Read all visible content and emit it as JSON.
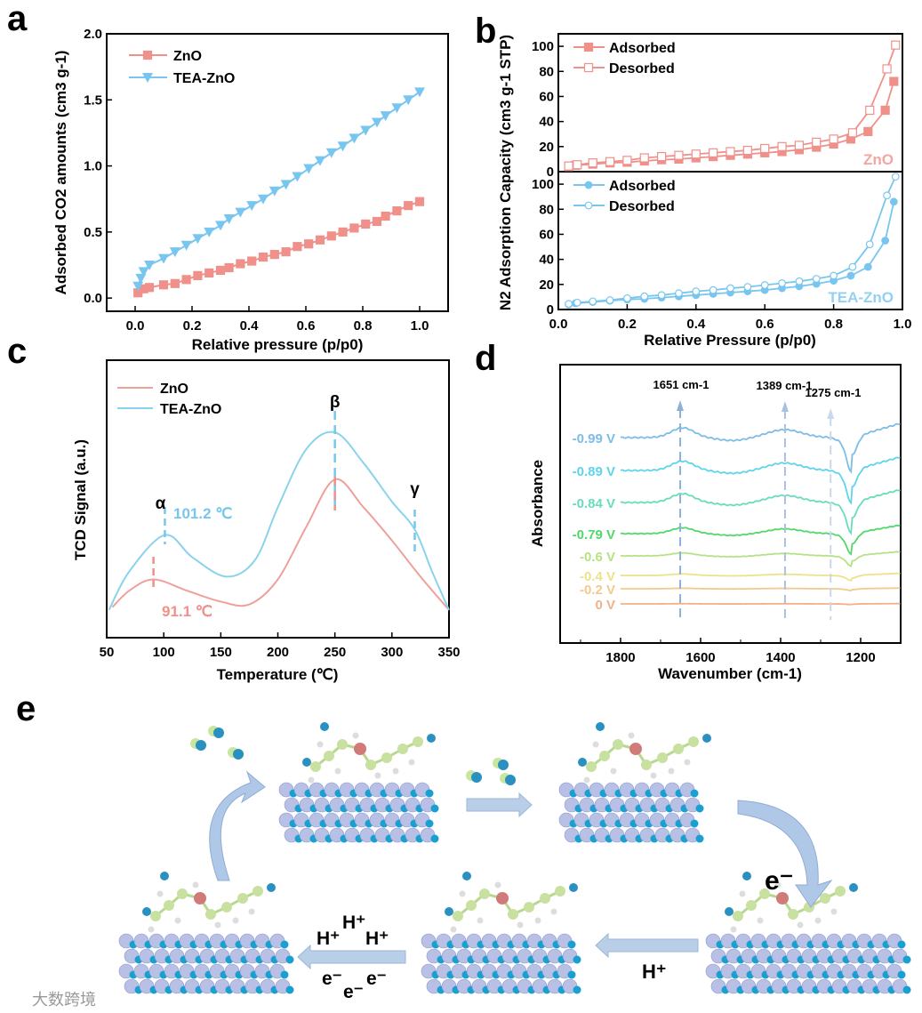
{
  "chart_data": [
    {
      "panel": "a",
      "type": "line",
      "xlabel": "Relative pressure (p/p0)",
      "ylabel": "Adsorbed CO2 amounts (cm3 g-1)",
      "xlim": [
        -0.1,
        1.1
      ],
      "ylim": [
        -0.1,
        2.0
      ],
      "xticks": [
        "0.0",
        "0.2",
        "0.4",
        "0.6",
        "0.8",
        "1.0"
      ],
      "yticks": [
        "0.0",
        "0.5",
        "1.0",
        "1.5",
        "2.0"
      ],
      "legend": "top-left",
      "series": [
        {
          "name": "ZnO",
          "color": "#f0908a",
          "marker": "square",
          "x": [
            0.01,
            0.03,
            0.05,
            0.1,
            0.14,
            0.18,
            0.22,
            0.26,
            0.3,
            0.33,
            0.37,
            0.41,
            0.45,
            0.49,
            0.53,
            0.57,
            0.61,
            0.65,
            0.69,
            0.73,
            0.77,
            0.81,
            0.85,
            0.88,
            0.92,
            0.96,
            1.0
          ],
          "y": [
            0.04,
            0.07,
            0.08,
            0.1,
            0.11,
            0.14,
            0.17,
            0.19,
            0.21,
            0.23,
            0.26,
            0.28,
            0.31,
            0.33,
            0.35,
            0.39,
            0.41,
            0.44,
            0.47,
            0.5,
            0.53,
            0.56,
            0.58,
            0.62,
            0.66,
            0.7,
            0.73
          ]
        },
        {
          "name": "TEA-ZnO",
          "color": "#78c6ef",
          "marker": "triangle-down",
          "x": [
            0.01,
            0.02,
            0.03,
            0.05,
            0.1,
            0.14,
            0.18,
            0.22,
            0.26,
            0.3,
            0.33,
            0.37,
            0.41,
            0.45,
            0.49,
            0.53,
            0.57,
            0.61,
            0.65,
            0.69,
            0.73,
            0.77,
            0.81,
            0.85,
            0.88,
            0.92,
            0.96,
            1.0
          ],
          "y": [
            0.09,
            0.15,
            0.2,
            0.25,
            0.3,
            0.35,
            0.4,
            0.45,
            0.5,
            0.55,
            0.6,
            0.65,
            0.7,
            0.75,
            0.81,
            0.86,
            0.92,
            0.98,
            1.04,
            1.1,
            1.15,
            1.21,
            1.27,
            1.33,
            1.38,
            1.44,
            1.5,
            1.56
          ]
        }
      ]
    },
    {
      "panel": "b",
      "type": "line",
      "xlabel": "Relative Pressure (p/p0)",
      "ylabel": "N2 Adsorption Capacity (cm3 g-1 STP)",
      "xlim": [
        0,
        1.0
      ],
      "ylim": [
        0,
        110
      ],
      "xticks": [
        "0.0",
        "0.2",
        "0.4",
        "0.6",
        "0.8",
        "1.0"
      ],
      "yticks": [
        "0",
        "20",
        "40",
        "60",
        "80",
        "100"
      ],
      "subplots": [
        {
          "label": "ZnO",
          "color": "#f0908a",
          "series": [
            {
              "name": "Adsorbed",
              "filled": true,
              "x": [
                0.03,
                0.05,
                0.1,
                0.15,
                0.2,
                0.25,
                0.3,
                0.35,
                0.4,
                0.45,
                0.5,
                0.55,
                0.6,
                0.65,
                0.7,
                0.75,
                0.8,
                0.85,
                0.9,
                0.95,
                0.975
              ],
              "y": [
                4,
                5,
                6,
                7,
                7.5,
                8.5,
                9.5,
                10,
                11,
                12,
                13,
                14,
                15,
                16,
                17.5,
                19.5,
                22,
                26,
                32,
                49,
                72
              ]
            },
            {
              "name": "Desorbed",
              "filled": false,
              "x": [
                0.98,
                0.955,
                0.905,
                0.855,
                0.8,
                0.75,
                0.7,
                0.65,
                0.6,
                0.55,
                0.5,
                0.45,
                0.4,
                0.35,
                0.3,
                0.25,
                0.2,
                0.15,
                0.1,
                0.055,
                0.03
              ],
              "y": [
                101,
                82,
                49,
                31,
                26,
                23.5,
                21,
                20,
                18.5,
                17,
                16,
                15,
                14,
                13,
                12,
                11,
                9,
                8,
                7,
                5.5,
                4.5
              ]
            }
          ]
        },
        {
          "label": "TEA-ZnO",
          "color": "#78c6ef",
          "series": [
            {
              "name": "Adsorbed",
              "filled": true,
              "x": [
                0.03,
                0.05,
                0.1,
                0.15,
                0.2,
                0.25,
                0.3,
                0.35,
                0.4,
                0.45,
                0.5,
                0.55,
                0.6,
                0.65,
                0.7,
                0.75,
                0.8,
                0.85,
                0.9,
                0.95,
                0.975
              ],
              "y": [
                4,
                5,
                6,
                7,
                8,
                8.5,
                9.5,
                10.5,
                11.5,
                12.5,
                13.5,
                14.5,
                15.5,
                17,
                18.5,
                20.5,
                23,
                27,
                34,
                55,
                86
              ]
            },
            {
              "name": "Desorbed",
              "filled": false,
              "x": [
                0.98,
                0.955,
                0.905,
                0.855,
                0.8,
                0.75,
                0.7,
                0.65,
                0.6,
                0.55,
                0.5,
                0.45,
                0.4,
                0.35,
                0.3,
                0.25,
                0.2,
                0.15,
                0.1,
                0.055,
                0.03
              ],
              "y": [
                106,
                91,
                52,
                34,
                27,
                24.5,
                22.5,
                21,
                19.5,
                18,
                17,
                15.5,
                14.5,
                13,
                11.5,
                10.5,
                9,
                7.5,
                6.5,
                5.5,
                4.5
              ]
            }
          ]
        }
      ]
    },
    {
      "panel": "c",
      "type": "line",
      "xlabel": "Temperature (℃)",
      "ylabel": "TCD Signal (a.u.)",
      "xlim": [
        50,
        350
      ],
      "ylim": [
        0,
        100
      ],
      "xticks": [
        "50",
        "100",
        "150",
        "200",
        "250",
        "300",
        "350"
      ],
      "legend": "top-left",
      "series": [
        {
          "name": "ZnO",
          "color": "#f0a09a",
          "x": [
            55,
            70,
            91,
            120,
            150,
            175,
            200,
            225,
            250,
            275,
            300,
            325,
            350
          ],
          "y": [
            11,
            17,
            21,
            17,
            13,
            12,
            21,
            40,
            57,
            47,
            35,
            22,
            10
          ]
        },
        {
          "name": "TEA-ZnO",
          "color": "#8ad3ec",
          "x": [
            52,
            70,
            101,
            125,
            155,
            180,
            200,
            225,
            250,
            275,
            300,
            320,
            335,
            350
          ],
          "y": [
            10,
            24,
            37,
            29,
            22,
            28,
            47,
            68,
            74,
            63,
            49,
            39,
            24,
            10
          ]
        }
      ],
      "annotations": [
        {
          "text": "α",
          "x": 101
        },
        {
          "text": "101.2 ℃",
          "x": 101,
          "color": "#78c6ef"
        },
        {
          "text": "91.1 ℃",
          "x": 91,
          "color": "#f0908a"
        },
        {
          "text": "β",
          "x": 250
        },
        {
          "text": "γ",
          "x": 320
        }
      ]
    },
    {
      "panel": "d",
      "type": "line",
      "xlabel": "Wavenumber (cm-1)",
      "ylabel": "Absorbance",
      "xlim": [
        1950,
        1100
      ],
      "xticks": [
        "1800",
        "1600",
        "1400",
        "1200"
      ],
      "peaks": [
        {
          "label": "1651 cm-1",
          "x": 1651
        },
        {
          "label": "1389 cm-1",
          "x": 1389
        },
        {
          "label": "1275 cm-1",
          "x": 1275
        }
      ],
      "series": [
        {
          "name": "-0.99 V",
          "color": "#7dbde6",
          "intensity": 1.0
        },
        {
          "name": "-0.89 V",
          "color": "#5ed4ea",
          "intensity": 0.95
        },
        {
          "name": "-0.84 V",
          "color": "#68dcbc",
          "intensity": 0.9
        },
        {
          "name": "-0.79 V",
          "color": "#52d86a",
          "intensity": 0.6
        },
        {
          "name": "-0.6 V",
          "color": "#b6e286",
          "intensity": 0.3
        },
        {
          "name": "-0.4 V",
          "color": "#ede18a",
          "intensity": 0.15
        },
        {
          "name": "-0.2 V",
          "color": "#f3c98c",
          "intensity": 0.05
        },
        {
          "name": "0 V",
          "color": "#f2b08c",
          "intensity": 0.02
        }
      ]
    }
  ],
  "panels": {
    "a": "a",
    "b": "b",
    "c": "c",
    "d": "d",
    "e": "e"
  },
  "legend_c": {
    "zno": "ZnO",
    "tea": "TEA-ZnO"
  },
  "scheme": {
    "electron": "e⁻",
    "proton": "H⁺",
    "protons": [
      "H⁺",
      "H⁺",
      "H⁺"
    ],
    "electrons": [
      "e⁻",
      "e⁻",
      "e⁻"
    ]
  },
  "watermark": "大数跨境"
}
